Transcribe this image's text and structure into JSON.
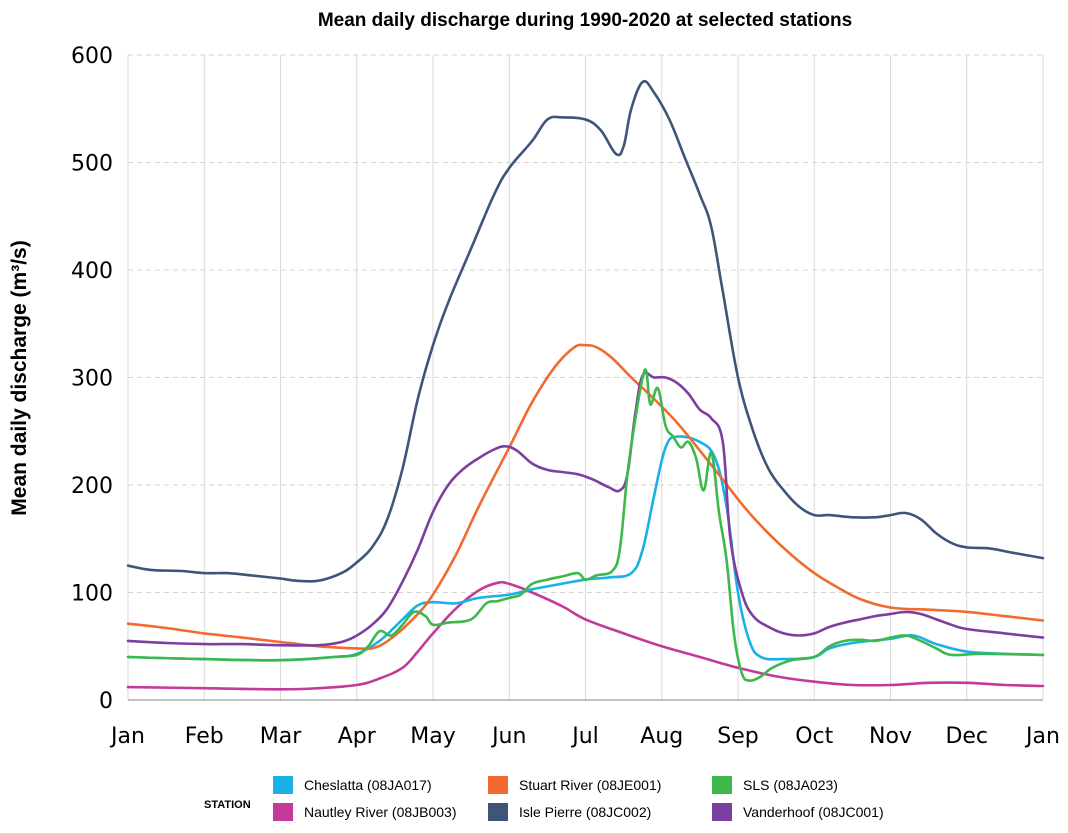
{
  "chart_data": {
    "type": "line",
    "title": "Mean daily discharge during 1990-2020 at selected stations",
    "ylabel": "Mean daily discharge (m³/s)",
    "xlabel": "",
    "x_ticks": [
      "Jan",
      "Feb",
      "Mar",
      "Apr",
      "May",
      "Jun",
      "Jul",
      "Aug",
      "Sep",
      "Oct",
      "Nov",
      "Dec",
      "Jan"
    ],
    "y_ticks": [
      "0",
      "100",
      "200",
      "300",
      "400",
      "500",
      "600"
    ],
    "ylim": [
      0,
      600
    ],
    "xlim_month": [
      0,
      12
    ],
    "grid": "on",
    "legend_position": "bottom",
    "legend_title": "STATION",
    "x_unit": "month (0 = Jan 1, 12 = next Jan 1)",
    "series": [
      {
        "name": "Cheslatta (08JA017)",
        "color": "#1ab0e8",
        "points": [
          [
            0,
            40
          ],
          [
            1,
            38
          ],
          [
            2,
            37
          ],
          [
            2.7,
            40
          ],
          [
            3,
            43
          ],
          [
            3.3,
            55
          ],
          [
            3.6,
            75
          ],
          [
            3.8,
            88
          ],
          [
            4,
            91
          ],
          [
            4.3,
            90
          ],
          [
            4.6,
            95
          ],
          [
            5,
            98
          ],
          [
            5.3,
            103
          ],
          [
            5.6,
            107
          ],
          [
            6,
            112
          ],
          [
            6.3,
            114
          ],
          [
            6.6,
            118
          ],
          [
            6.75,
            140
          ],
          [
            6.9,
            190
          ],
          [
            7.05,
            235
          ],
          [
            7.2,
            245
          ],
          [
            7.5,
            240
          ],
          [
            7.7,
            225
          ],
          [
            7.85,
            180
          ],
          [
            8,
            100
          ],
          [
            8.15,
            55
          ],
          [
            8.3,
            40
          ],
          [
            8.6,
            38
          ],
          [
            9,
            40
          ],
          [
            9.2,
            48
          ],
          [
            9.5,
            53
          ],
          [
            10,
            57
          ],
          [
            10.3,
            60
          ],
          [
            10.6,
            52
          ],
          [
            11,
            45
          ],
          [
            11.5,
            43
          ],
          [
            12,
            42
          ]
        ]
      },
      {
        "name": "Nautley River (08JB003)",
        "color": "#c43a9a",
        "points": [
          [
            0,
            12
          ],
          [
            1,
            11
          ],
          [
            2,
            10
          ],
          [
            2.5,
            11
          ],
          [
            3,
            14
          ],
          [
            3.3,
            20
          ],
          [
            3.6,
            30
          ],
          [
            3.8,
            45
          ],
          [
            4,
            62
          ],
          [
            4.3,
            85
          ],
          [
            4.6,
            102
          ],
          [
            4.85,
            109
          ],
          [
            5,
            108
          ],
          [
            5.3,
            100
          ],
          [
            5.7,
            87
          ],
          [
            6,
            75
          ],
          [
            6.5,
            62
          ],
          [
            7,
            50
          ],
          [
            7.5,
            40
          ],
          [
            8,
            30
          ],
          [
            8.5,
            22
          ],
          [
            9,
            17
          ],
          [
            9.5,
            14
          ],
          [
            10,
            14
          ],
          [
            10.5,
            16
          ],
          [
            11,
            16
          ],
          [
            11.5,
            14
          ],
          [
            12,
            13
          ]
        ]
      },
      {
        "name": "Stuart River (08JE001)",
        "color": "#f26a30",
        "points": [
          [
            0,
            71
          ],
          [
            0.5,
            67
          ],
          [
            1,
            62
          ],
          [
            1.5,
            58
          ],
          [
            2,
            54
          ],
          [
            2.5,
            50
          ],
          [
            3,
            48
          ],
          [
            3.25,
            49
          ],
          [
            3.5,
            60
          ],
          [
            3.8,
            80
          ],
          [
            4,
            98
          ],
          [
            4.3,
            135
          ],
          [
            4.6,
            180
          ],
          [
            5,
            235
          ],
          [
            5.3,
            277
          ],
          [
            5.6,
            310
          ],
          [
            5.85,
            328
          ],
          [
            6,
            330
          ],
          [
            6.15,
            328
          ],
          [
            6.35,
            318
          ],
          [
            6.6,
            300
          ],
          [
            6.9,
            280
          ],
          [
            7.2,
            258
          ],
          [
            7.5,
            232
          ],
          [
            7.8,
            205
          ],
          [
            8.1,
            178
          ],
          [
            8.4,
            155
          ],
          [
            8.7,
            135
          ],
          [
            9,
            118
          ],
          [
            9.3,
            105
          ],
          [
            9.6,
            94
          ],
          [
            10,
            86
          ],
          [
            10.5,
            84
          ],
          [
            11,
            82
          ],
          [
            11.5,
            78
          ],
          [
            12,
            74
          ]
        ]
      },
      {
        "name": "Isle Pierre (08JC002)",
        "color": "#3e5478",
        "points": [
          [
            0,
            125
          ],
          [
            0.3,
            121
          ],
          [
            0.7,
            120
          ],
          [
            1,
            118
          ],
          [
            1.3,
            118
          ],
          [
            1.6,
            116
          ],
          [
            2,
            113
          ],
          [
            2.2,
            111
          ],
          [
            2.5,
            111
          ],
          [
            2.8,
            118
          ],
          [
            3,
            128
          ],
          [
            3.2,
            142
          ],
          [
            3.4,
            168
          ],
          [
            3.6,
            215
          ],
          [
            3.8,
            280
          ],
          [
            4,
            330
          ],
          [
            4.2,
            370
          ],
          [
            4.5,
            420
          ],
          [
            4.8,
            470
          ],
          [
            5,
            495
          ],
          [
            5.3,
            520
          ],
          [
            5.5,
            540
          ],
          [
            5.7,
            542
          ],
          [
            6,
            540
          ],
          [
            6.2,
            530
          ],
          [
            6.4,
            508
          ],
          [
            6.5,
            515
          ],
          [
            6.6,
            550
          ],
          [
            6.75,
            575
          ],
          [
            6.9,
            565
          ],
          [
            7.1,
            540
          ],
          [
            7.3,
            505
          ],
          [
            7.5,
            470
          ],
          [
            7.65,
            440
          ],
          [
            7.8,
            380
          ],
          [
            8,
            300
          ],
          [
            8.2,
            250
          ],
          [
            8.4,
            215
          ],
          [
            8.6,
            195
          ],
          [
            8.8,
            180
          ],
          [
            9,
            172
          ],
          [
            9.2,
            172
          ],
          [
            9.5,
            170
          ],
          [
            9.8,
            170
          ],
          [
            10,
            172
          ],
          [
            10.2,
            174
          ],
          [
            10.4,
            168
          ],
          [
            10.6,
            155
          ],
          [
            10.8,
            146
          ],
          [
            11,
            142
          ],
          [
            11.3,
            141
          ],
          [
            11.6,
            137
          ],
          [
            12,
            132
          ]
        ]
      },
      {
        "name": "SLS (08JA023)",
        "color": "#3db84a",
        "points": [
          [
            0,
            40
          ],
          [
            1,
            38
          ],
          [
            2,
            37
          ],
          [
            2.7,
            40
          ],
          [
            3,
            42
          ],
          [
            3.15,
            50
          ],
          [
            3.3,
            64
          ],
          [
            3.45,
            60
          ],
          [
            3.6,
            70
          ],
          [
            3.75,
            82
          ],
          [
            3.9,
            78
          ],
          [
            4,
            70
          ],
          [
            4.2,
            72
          ],
          [
            4.5,
            75
          ],
          [
            4.7,
            90
          ],
          [
            4.85,
            92
          ],
          [
            5,
            95
          ],
          [
            5.15,
            98
          ],
          [
            5.3,
            108
          ],
          [
            5.5,
            112
          ],
          [
            5.7,
            115
          ],
          [
            5.9,
            118
          ],
          [
            6,
            112
          ],
          [
            6.15,
            116
          ],
          [
            6.35,
            120
          ],
          [
            6.45,
            140
          ],
          [
            6.55,
            210
          ],
          [
            6.65,
            260
          ],
          [
            6.75,
            300
          ],
          [
            6.8,
            305
          ],
          [
            6.85,
            275
          ],
          [
            6.95,
            290
          ],
          [
            7.05,
            255
          ],
          [
            7.15,
            245
          ],
          [
            7.25,
            235
          ],
          [
            7.35,
            240
          ],
          [
            7.45,
            225
          ],
          [
            7.55,
            195
          ],
          [
            7.65,
            230
          ],
          [
            7.75,
            175
          ],
          [
            7.85,
            130
          ],
          [
            7.95,
            60
          ],
          [
            8.05,
            25
          ],
          [
            8.15,
            18
          ],
          [
            8.3,
            22
          ],
          [
            8.45,
            30
          ],
          [
            8.7,
            37
          ],
          [
            9,
            40
          ],
          [
            9.2,
            50
          ],
          [
            9.4,
            55
          ],
          [
            9.6,
            56
          ],
          [
            9.8,
            55
          ],
          [
            10,
            58
          ],
          [
            10.2,
            60
          ],
          [
            10.4,
            55
          ],
          [
            10.6,
            48
          ],
          [
            10.8,
            42
          ],
          [
            11.2,
            43
          ],
          [
            12,
            42
          ]
        ]
      },
      {
        "name": "Vanderhoof (08JC001)",
        "color": "#7b3fa0",
        "points": [
          [
            0,
            55
          ],
          [
            0.5,
            53
          ],
          [
            1,
            52
          ],
          [
            1.5,
            52
          ],
          [
            2,
            51
          ],
          [
            2.5,
            51
          ],
          [
            2.8,
            54
          ],
          [
            3,
            60
          ],
          [
            3.2,
            70
          ],
          [
            3.4,
            85
          ],
          [
            3.6,
            110
          ],
          [
            3.8,
            140
          ],
          [
            4,
            175
          ],
          [
            4.2,
            200
          ],
          [
            4.4,
            215
          ],
          [
            4.6,
            225
          ],
          [
            4.8,
            233
          ],
          [
            4.95,
            236
          ],
          [
            5.1,
            232
          ],
          [
            5.3,
            220
          ],
          [
            5.5,
            214
          ],
          [
            5.7,
            212
          ],
          [
            5.9,
            210
          ],
          [
            6.1,
            205
          ],
          [
            6.3,
            198
          ],
          [
            6.45,
            195
          ],
          [
            6.55,
            210
          ],
          [
            6.65,
            265
          ],
          [
            6.75,
            302
          ],
          [
            6.9,
            300
          ],
          [
            7.05,
            300
          ],
          [
            7.2,
            295
          ],
          [
            7.35,
            285
          ],
          [
            7.5,
            270
          ],
          [
            7.65,
            262
          ],
          [
            7.8,
            240
          ],
          [
            7.9,
            150
          ],
          [
            8.05,
            100
          ],
          [
            8.2,
            78
          ],
          [
            8.4,
            68
          ],
          [
            8.6,
            62
          ],
          [
            8.8,
            60
          ],
          [
            9,
            62
          ],
          [
            9.2,
            68
          ],
          [
            9.4,
            72
          ],
          [
            9.6,
            75
          ],
          [
            9.8,
            78
          ],
          [
            10,
            80
          ],
          [
            10.2,
            82
          ],
          [
            10.4,
            80
          ],
          [
            10.6,
            75
          ],
          [
            10.8,
            70
          ],
          [
            11,
            66
          ],
          [
            11.5,
            62
          ],
          [
            12,
            58
          ]
        ]
      }
    ]
  }
}
